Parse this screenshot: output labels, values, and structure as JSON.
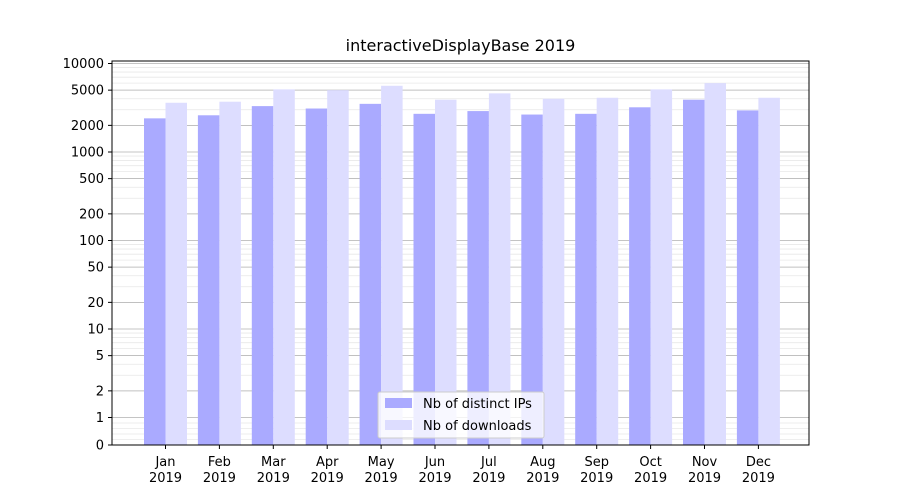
{
  "chart_data": {
    "type": "bar",
    "title": "interactiveDisplayBase 2019",
    "xlabel": "",
    "ylabel": "",
    "y_scale": "symlog",
    "ylim": [
      0,
      13000
    ],
    "categories": [
      {
        "month": "Jan",
        "year": "2019"
      },
      {
        "month": "Feb",
        "year": "2019"
      },
      {
        "month": "Mar",
        "year": "2019"
      },
      {
        "month": "Apr",
        "year": "2019"
      },
      {
        "month": "May",
        "year": "2019"
      },
      {
        "month": "Jun",
        "year": "2019"
      },
      {
        "month": "Jul",
        "year": "2019"
      },
      {
        "month": "Aug",
        "year": "2019"
      },
      {
        "month": "Sep",
        "year": "2019"
      },
      {
        "month": "Oct",
        "year": "2019"
      },
      {
        "month": "Nov",
        "year": "2019"
      },
      {
        "month": "Dec",
        "year": "2019"
      }
    ],
    "y_ticks": [
      0,
      1,
      2,
      5,
      10,
      20,
      50,
      100,
      200,
      500,
      1000,
      2000,
      5000,
      10000
    ],
    "y_tick_labels": [
      "0",
      "1",
      "2",
      "5",
      "10",
      "20",
      "50",
      "100",
      "200",
      "500",
      "1000",
      "2000",
      "5000",
      "10000"
    ],
    "series": [
      {
        "name": "Nb of distinct IPs",
        "color": "#aaaaff",
        "values": [
          2400,
          2600,
          3300,
          3100,
          3500,
          2700,
          2900,
          2650,
          2700,
          3200,
          3900,
          2950
        ]
      },
      {
        "name": "Nb of downloads",
        "color": "#ddddff",
        "values": [
          3600,
          3700,
          5100,
          5000,
          5600,
          3900,
          4600,
          4000,
          4100,
          5100,
          6000,
          4100
        ]
      }
    ],
    "grid": "y",
    "legend_position": "bottom-center"
  }
}
